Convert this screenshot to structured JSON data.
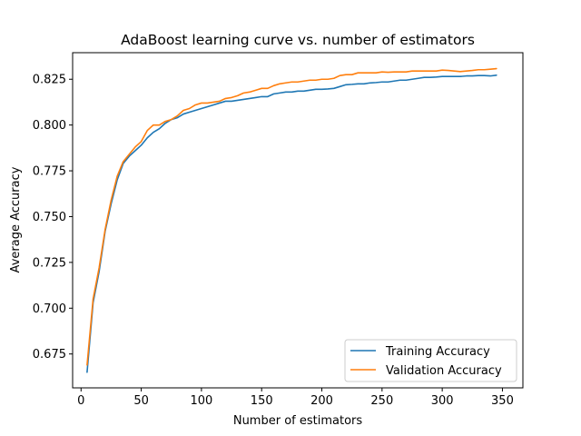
{
  "chart_data": {
    "type": "line",
    "title": "AdaBoost learning curve vs. number of estimators",
    "xlabel": "Number of estimators",
    "ylabel": "Average Accuracy",
    "xlim": [
      -7,
      367
    ],
    "ylim": [
      0.6565,
      0.8395
    ],
    "xticks": [
      0,
      50,
      100,
      150,
      200,
      250,
      300,
      350
    ],
    "yticks": [
      0.675,
      0.7,
      0.725,
      0.75,
      0.775,
      0.8,
      0.825
    ],
    "ytick_labels": [
      "0.675",
      "0.700",
      "0.725",
      "0.750",
      "0.775",
      "0.800",
      "0.825"
    ],
    "grid": false,
    "legend_position": "lower-right",
    "colors": {
      "training": "#1f77b4",
      "validation": "#ff7f0e"
    },
    "x": [
      5,
      10,
      15,
      20,
      25,
      30,
      35,
      40,
      45,
      50,
      55,
      60,
      65,
      70,
      75,
      80,
      85,
      90,
      95,
      100,
      105,
      110,
      115,
      120,
      125,
      130,
      135,
      140,
      145,
      150,
      155,
      160,
      165,
      170,
      175,
      180,
      185,
      190,
      195,
      200,
      205,
      210,
      215,
      220,
      225,
      230,
      235,
      240,
      245,
      250,
      255,
      260,
      265,
      270,
      275,
      280,
      285,
      290,
      295,
      300,
      305,
      310,
      315,
      320,
      325,
      330,
      335,
      340,
      345
    ],
    "series": [
      {
        "name": "Training Accuracy",
        "color": "#1f77b4",
        "values": [
          0.665,
          0.703,
          0.72,
          0.742,
          0.757,
          0.77,
          0.779,
          0.783,
          0.786,
          0.789,
          0.793,
          0.796,
          0.798,
          0.801,
          0.803,
          0.804,
          0.806,
          0.807,
          0.808,
          0.809,
          0.81,
          0.811,
          0.812,
          0.813,
          0.813,
          0.8135,
          0.814,
          0.8145,
          0.815,
          0.8155,
          0.8155,
          0.817,
          0.8175,
          0.818,
          0.818,
          0.8185,
          0.8185,
          0.819,
          0.8195,
          0.8195,
          0.8197,
          0.82,
          0.821,
          0.822,
          0.8222,
          0.8225,
          0.8225,
          0.823,
          0.8232,
          0.8235,
          0.8235,
          0.824,
          0.8245,
          0.8245,
          0.825,
          0.8255,
          0.826,
          0.826,
          0.8262,
          0.8265,
          0.8265,
          0.8265,
          0.8265,
          0.8268,
          0.8268,
          0.827,
          0.827,
          0.8268,
          0.8272
        ]
      },
      {
        "name": "Validation Accuracy",
        "color": "#ff7f0e",
        "values": [
          0.669,
          0.705,
          0.722,
          0.743,
          0.759,
          0.772,
          0.78,
          0.784,
          0.788,
          0.791,
          0.797,
          0.8,
          0.8,
          0.802,
          0.803,
          0.805,
          0.808,
          0.809,
          0.811,
          0.812,
          0.812,
          0.8125,
          0.813,
          0.8145,
          0.815,
          0.816,
          0.8175,
          0.818,
          0.819,
          0.82,
          0.82,
          0.8215,
          0.8225,
          0.823,
          0.8235,
          0.8235,
          0.824,
          0.8245,
          0.8245,
          0.825,
          0.825,
          0.8255,
          0.827,
          0.8275,
          0.8275,
          0.8285,
          0.8285,
          0.8285,
          0.8285,
          0.829,
          0.8288,
          0.829,
          0.829,
          0.829,
          0.8295,
          0.8295,
          0.8295,
          0.8295,
          0.8295,
          0.83,
          0.8298,
          0.8295,
          0.8292,
          0.8295,
          0.8298,
          0.8302,
          0.8302,
          0.8305,
          0.8308
        ]
      }
    ]
  }
}
